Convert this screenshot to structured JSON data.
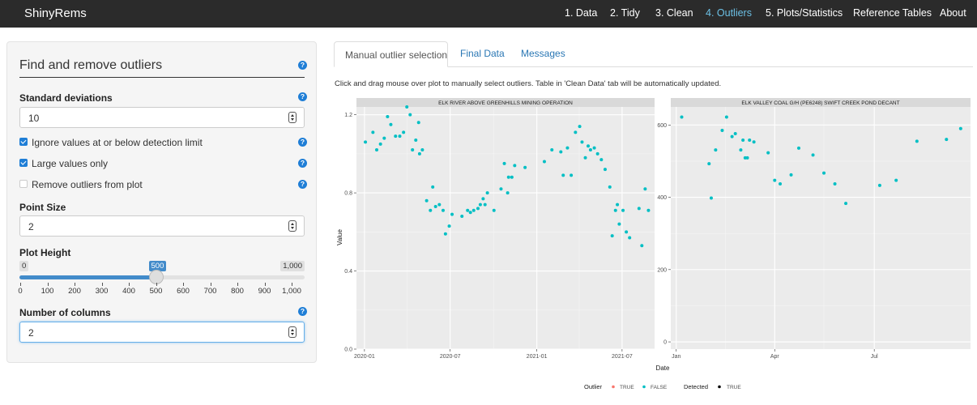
{
  "app": {
    "brand": "ShinyRems",
    "nav": [
      "1. Data",
      "2. Tidy",
      "3. Clean",
      "4. Outliers",
      "5. Plots/Statistics",
      "Reference Tables",
      "About"
    ],
    "active_nav": "4. Outliers"
  },
  "sidebar": {
    "title": "Find and remove outliers",
    "std_label": "Standard deviations",
    "std_value": "10",
    "ignore_label": "Ignore values at or below detection limit",
    "ignore_checked": true,
    "large_label": "Large values only",
    "large_checked": true,
    "remove_label": "Remove outliers from plot",
    "remove_checked": false,
    "point_size_label": "Point Size",
    "point_size_value": "2",
    "plot_height_label": "Plot Height",
    "slider_min": "0",
    "slider_max": "1,000",
    "slider_value": "500",
    "slider_ticks": [
      "0",
      "100",
      "200",
      "300",
      "400",
      "500",
      "600",
      "700",
      "800",
      "900",
      "1,000"
    ],
    "columns_label": "Number of columns",
    "columns_value": "2",
    "help_icon": "question-circle-icon"
  },
  "main": {
    "tabs": [
      "Manual outlier selection",
      "Final Data",
      "Messages"
    ],
    "active_tab": "Manual outlier selection",
    "instructions": "Click and drag mouse over plot to manually select outliers. Table in 'Clean Data' tab will be automatically updated."
  },
  "colors": {
    "navbar": "#2b2b2b",
    "active_nav": "#6cc0e5",
    "link": "#2a77b4",
    "accent": "#428bca",
    "point_false": "#00bfc4",
    "point_true": "#f8766d",
    "panel_bg": "#ebebeb",
    "strip_bg": "#d9d9d9"
  },
  "chart_data": [
    {
      "type": "scatter",
      "title": "ELK RIVER ABOVE GREENHILLS MINING OPERATION",
      "ylabel": "Value",
      "xlim": [
        "2019-12-15",
        "2021-09-08"
      ],
      "ylim": [
        0,
        1.24
      ],
      "x_ticks": [
        {
          "value": "2020-01-01",
          "label": "2020-01"
        },
        {
          "value": "2020-07-01",
          "label": "2020-07"
        },
        {
          "value": "2021-01-01",
          "label": "2021-01"
        },
        {
          "value": "2021-07-01",
          "label": "2021-07"
        }
      ],
      "y_ticks": [
        {
          "value": 0,
          "label": "0.0"
        },
        {
          "value": 0.4,
          "label": "0.4"
        },
        {
          "value": 0.8,
          "label": "0.8"
        },
        {
          "value": 1.2,
          "label": "1.2"
        }
      ],
      "points": [
        [
          "2020-01-03",
          1.06
        ],
        [
          "2020-01-19",
          1.11
        ],
        [
          "2020-01-27",
          1.02
        ],
        [
          "2020-02-04",
          1.05
        ],
        [
          "2020-02-12",
          1.08
        ],
        [
          "2020-02-19",
          1.19
        ],
        [
          "2020-02-26",
          1.15
        ],
        [
          "2020-03-07",
          1.09
        ],
        [
          "2020-03-16",
          1.09
        ],
        [
          "2020-03-24",
          1.11
        ],
        [
          "2020-03-31",
          1.24
        ],
        [
          "2020-04-07",
          1.2
        ],
        [
          "2020-04-12",
          1.02
        ],
        [
          "2020-04-19",
          1.07
        ],
        [
          "2020-04-25",
          1.16
        ],
        [
          "2020-04-27",
          1.0
        ],
        [
          "2020-05-03",
          1.02
        ],
        [
          "2020-05-12",
          0.76
        ],
        [
          "2020-05-20",
          0.71
        ],
        [
          "2020-05-25",
          0.83
        ],
        [
          "2020-05-31",
          0.73
        ],
        [
          "2020-06-08",
          0.74
        ],
        [
          "2020-06-16",
          0.71
        ],
        [
          "2020-06-21",
          0.59
        ],
        [
          "2020-06-29",
          0.63
        ],
        [
          "2020-07-05",
          0.69
        ],
        [
          "2020-07-26",
          0.68
        ],
        [
          "2020-08-07",
          0.71
        ],
        [
          "2020-08-13",
          0.7
        ],
        [
          "2020-08-20",
          0.71
        ],
        [
          "2020-08-29",
          0.72
        ],
        [
          "2020-09-03",
          0.74
        ],
        [
          "2020-09-09",
          0.77
        ],
        [
          "2020-09-13",
          0.74
        ],
        [
          "2020-09-18",
          0.8
        ],
        [
          "2020-10-02",
          0.71
        ],
        [
          "2020-10-17",
          0.82
        ],
        [
          "2020-10-24",
          0.95
        ],
        [
          "2020-10-31",
          0.8
        ],
        [
          "2020-11-02",
          0.88
        ],
        [
          "2020-11-09",
          0.88
        ],
        [
          "2020-11-15",
          0.94
        ],
        [
          "2020-12-07",
          0.93
        ],
        [
          "2021-01-17",
          0.96
        ],
        [
          "2021-02-02",
          1.02
        ],
        [
          "2021-02-21",
          1.01
        ],
        [
          "2021-02-26",
          0.89
        ],
        [
          "2021-03-07",
          1.03
        ],
        [
          "2021-03-15",
          0.89
        ],
        [
          "2021-03-24",
          1.11
        ],
        [
          "2021-04-02",
          1.14
        ],
        [
          "2021-04-07",
          1.06
        ],
        [
          "2021-04-14",
          0.98
        ],
        [
          "2021-04-20",
          1.04
        ],
        [
          "2021-04-25",
          1.02
        ],
        [
          "2021-05-03",
          1.03
        ],
        [
          "2021-05-10",
          1.0
        ],
        [
          "2021-05-18",
          0.97
        ],
        [
          "2021-05-26",
          0.92
        ],
        [
          "2021-06-05",
          0.83
        ],
        [
          "2021-06-10",
          0.58
        ],
        [
          "2021-06-17",
          0.71
        ],
        [
          "2021-06-21",
          0.74
        ],
        [
          "2021-06-25",
          0.64
        ],
        [
          "2021-07-03",
          0.71
        ],
        [
          "2021-07-10",
          0.6
        ],
        [
          "2021-07-17",
          0.57
        ],
        [
          "2021-08-06",
          0.72
        ],
        [
          "2021-08-12",
          0.53
        ],
        [
          "2021-08-19",
          0.82
        ],
        [
          "2021-08-26",
          0.71
        ]
      ],
      "outlier": "FALSE"
    },
    {
      "type": "scatter",
      "title": "ELK VALLEY COAL  G/H (PE6248) SWIFT CREEK POND DECANT",
      "xlim": [
        "2020-12-27",
        "2021-09-27"
      ],
      "ylim": [
        -20,
        650
      ],
      "x_ticks": [
        {
          "value": "2021-01-01",
          "label": "Jan"
        },
        {
          "value": "2021-04-01",
          "label": "Apr"
        },
        {
          "value": "2021-07-01",
          "label": "Jul"
        }
      ],
      "y_ticks": [
        {
          "value": 0,
          "label": "0"
        },
        {
          "value": 200,
          "label": "200"
        },
        {
          "value": 400,
          "label": "400"
        },
        {
          "value": 600,
          "label": "600"
        }
      ],
      "points": [
        [
          "2021-01-06",
          622
        ],
        [
          "2021-01-31",
          493
        ],
        [
          "2021-02-02",
          398
        ],
        [
          "2021-02-06",
          531
        ],
        [
          "2021-02-12",
          585
        ],
        [
          "2021-02-16",
          622
        ],
        [
          "2021-02-21",
          568
        ],
        [
          "2021-02-24",
          576
        ],
        [
          "2021-03-01",
          531
        ],
        [
          "2021-03-03",
          558
        ],
        [
          "2021-03-05",
          509
        ],
        [
          "2021-03-07",
          509
        ],
        [
          "2021-03-09",
          558
        ],
        [
          "2021-03-13",
          553
        ],
        [
          "2021-03-26",
          523
        ],
        [
          "2021-04-01",
          447
        ],
        [
          "2021-04-06",
          437
        ],
        [
          "2021-04-16",
          462
        ],
        [
          "2021-04-23",
          536
        ],
        [
          "2021-05-06",
          517
        ],
        [
          "2021-05-16",
          467
        ],
        [
          "2021-05-26",
          437
        ],
        [
          "2021-06-05",
          383
        ],
        [
          "2021-07-06",
          433
        ],
        [
          "2021-07-21",
          447
        ],
        [
          "2021-08-09",
          555
        ],
        [
          "2021-09-05",
          560
        ],
        [
          "2021-09-18",
          590
        ]
      ],
      "outlier": "FALSE"
    }
  ],
  "shared_xlabel": "Date",
  "legend": {
    "outlier_title": "Outlier",
    "outlier_true": "TRUE",
    "outlier_false": "FALSE",
    "detected_title": "Detected",
    "detected_true": "TRUE"
  }
}
